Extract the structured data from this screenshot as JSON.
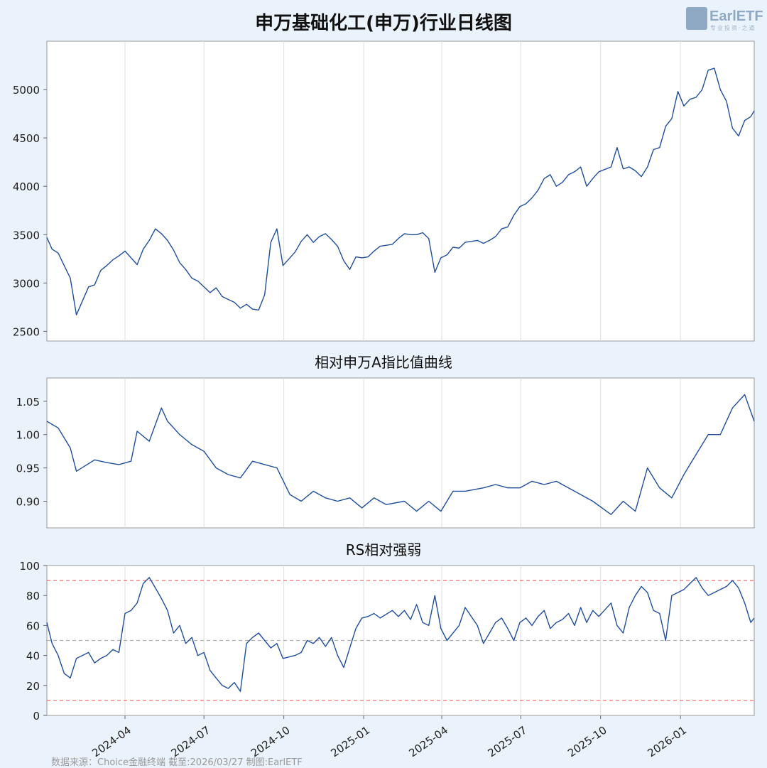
{
  "main_title": "申万基础化工(申万)行业日线图",
  "logo": {
    "text": "EarlETF",
    "subtext": "专业投资·之道"
  },
  "footer": "数据来源：Choice金融终端 截至:2026/03/27 制图:EarlETF",
  "colors": {
    "line": "#1f4e9e",
    "background": "#eaf3fb",
    "panel": "#ffffff",
    "ref_red": "#f07070",
    "ref_gray": "#b0b0b0",
    "grid": "#dddddd"
  },
  "x_axis": {
    "tick_labels": [
      "2024-04",
      "2024-07",
      "2024-10",
      "2025-01",
      "2025-04",
      "2025-07",
      "2025-10",
      "2026-01"
    ]
  },
  "chart_data": [
    {
      "type": "line",
      "title": "申万基础化工(申万)行业日线图",
      "series": [
        {
          "name": "",
          "x": [
            "2024-01-02",
            "2024-01-08",
            "2024-01-15",
            "2024-01-22",
            "2024-01-29",
            "2024-02-05",
            "2024-02-19",
            "2024-02-26",
            "2024-03-04",
            "2024-03-11",
            "2024-03-18",
            "2024-03-25",
            "2024-04-01",
            "2024-04-08",
            "2024-04-15",
            "2024-04-22",
            "2024-04-29",
            "2024-05-06",
            "2024-05-13",
            "2024-05-20",
            "2024-05-27",
            "2024-06-03",
            "2024-06-10",
            "2024-06-17",
            "2024-06-24",
            "2024-07-01",
            "2024-07-08",
            "2024-07-15",
            "2024-07-22",
            "2024-07-29",
            "2024-08-05",
            "2024-08-12",
            "2024-08-19",
            "2024-08-26",
            "2024-09-02",
            "2024-09-09",
            "2024-09-16",
            "2024-09-23",
            "2024-09-30",
            "2024-10-14",
            "2024-10-21",
            "2024-10-28",
            "2024-11-04",
            "2024-11-11",
            "2024-11-18",
            "2024-11-25",
            "2024-12-02",
            "2024-12-09",
            "2024-12-16",
            "2024-12-23",
            "2024-12-30",
            "2025-01-06",
            "2025-01-13",
            "2025-01-20",
            "2025-02-03",
            "2025-02-10",
            "2025-02-17",
            "2025-02-24",
            "2025-03-03",
            "2025-03-10",
            "2025-03-17",
            "2025-03-24",
            "2025-03-31",
            "2025-04-07",
            "2025-04-14",
            "2025-04-21",
            "2025-04-28",
            "2025-05-12",
            "2025-05-19",
            "2025-05-26",
            "2025-06-02",
            "2025-06-09",
            "2025-06-16",
            "2025-06-23",
            "2025-06-30",
            "2025-07-07",
            "2025-07-14",
            "2025-07-21",
            "2025-07-28",
            "2025-08-04",
            "2025-08-11",
            "2025-08-18",
            "2025-08-25",
            "2025-09-01",
            "2025-09-08",
            "2025-09-15",
            "2025-09-22",
            "2025-09-29",
            "2025-10-13",
            "2025-10-20",
            "2025-10-27",
            "2025-11-03",
            "2025-11-10",
            "2025-11-17",
            "2025-11-24",
            "2025-12-01",
            "2025-12-08",
            "2025-12-15",
            "2025-12-22",
            "2025-12-29",
            "2026-01-05",
            "2026-01-12",
            "2026-01-19",
            "2026-01-26",
            "2026-02-02",
            "2026-02-09",
            "2026-02-16",
            "2026-02-23",
            "2026-03-02",
            "2026-03-09",
            "2026-03-16",
            "2026-03-23",
            "2026-03-27"
          ],
          "values": [
            3470,
            3350,
            3310,
            3180,
            3050,
            2670,
            2960,
            2980,
            3130,
            3180,
            3240,
            3280,
            3330,
            3260,
            3190,
            3350,
            3440,
            3560,
            3510,
            3440,
            3340,
            3210,
            3140,
            3050,
            3020,
            2960,
            2900,
            2950,
            2860,
            2830,
            2800,
            2740,
            2780,
            2730,
            2720,
            2880,
            3420,
            3560,
            3180,
            3320,
            3430,
            3500,
            3420,
            3480,
            3510,
            3450,
            3380,
            3230,
            3140,
            3270,
            3260,
            3270,
            3330,
            3380,
            3400,
            3460,
            3510,
            3500,
            3500,
            3520,
            3460,
            3110,
            3260,
            3290,
            3370,
            3360,
            3420,
            3440,
            3410,
            3440,
            3480,
            3560,
            3580,
            3700,
            3790,
            3820,
            3880,
            3960,
            4080,
            4120,
            4000,
            4040,
            4120,
            4150,
            4200,
            4000,
            4080,
            4150,
            4200,
            4400,
            4180,
            4200,
            4160,
            4100,
            4200,
            4380,
            4400,
            4620,
            4700,
            4980,
            4830,
            4900,
            4920,
            5000,
            5200,
            5220,
            5000,
            4880,
            4600,
            4520,
            4680,
            4720,
            4780
          ]
        }
      ],
      "ylim": [
        2400,
        5500
      ],
      "yticks": [
        2500,
        3000,
        3500,
        4000,
        4500,
        5000
      ]
    },
    {
      "type": "line",
      "title": "相对申万A指比值曲线",
      "series": [
        {
          "name": "",
          "x": [
            "2024-01-02",
            "2024-01-15",
            "2024-01-29",
            "2024-02-05",
            "2024-02-26",
            "2024-03-11",
            "2024-03-25",
            "2024-04-08",
            "2024-04-15",
            "2024-04-29",
            "2024-05-13",
            "2024-05-20",
            "2024-06-03",
            "2024-06-17",
            "2024-07-01",
            "2024-07-15",
            "2024-07-29",
            "2024-08-12",
            "2024-08-26",
            "2024-09-09",
            "2024-09-23",
            "2024-10-08",
            "2024-10-21",
            "2024-11-04",
            "2024-11-18",
            "2024-12-02",
            "2024-12-16",
            "2024-12-30",
            "2025-01-13",
            "2025-01-27",
            "2025-02-17",
            "2025-03-03",
            "2025-03-17",
            "2025-03-31",
            "2025-04-14",
            "2025-04-28",
            "2025-05-19",
            "2025-06-02",
            "2025-06-16",
            "2025-06-30",
            "2025-07-14",
            "2025-07-28",
            "2025-08-11",
            "2025-08-25",
            "2025-09-08",
            "2025-09-22",
            "2025-10-13",
            "2025-10-27",
            "2025-11-10",
            "2025-11-24",
            "2025-12-08",
            "2025-12-22",
            "2026-01-05",
            "2026-01-19",
            "2026-02-02",
            "2026-02-16",
            "2026-03-02",
            "2026-03-16",
            "2026-03-27"
          ],
          "values": [
            1.02,
            1.01,
            0.98,
            0.945,
            0.962,
            0.958,
            0.955,
            0.96,
            1.005,
            0.99,
            1.04,
            1.02,
            1.0,
            0.985,
            0.975,
            0.95,
            0.94,
            0.935,
            0.96,
            0.955,
            0.95,
            0.91,
            0.9,
            0.915,
            0.905,
            0.9,
            0.905,
            0.89,
            0.905,
            0.895,
            0.9,
            0.885,
            0.9,
            0.885,
            0.915,
            0.915,
            0.92,
            0.925,
            0.92,
            0.92,
            0.93,
            0.925,
            0.93,
            0.92,
            0.91,
            0.9,
            0.88,
            0.9,
            0.885,
            0.95,
            0.92,
            0.905,
            0.94,
            0.97,
            1.0,
            1.0,
            1.04,
            1.06,
            1.02
          ]
        }
      ],
      "ylim": [
        0.86,
        1.085
      ],
      "yticks": [
        0.9,
        0.95,
        1.0,
        1.05
      ],
      "ytick_labels": [
        "0.90",
        "0.95",
        "1.00",
        "1.05"
      ]
    },
    {
      "type": "line",
      "title": "RS相对强弱",
      "series": [
        {
          "name": "",
          "x": [
            "2024-01-02",
            "2024-01-08",
            "2024-01-15",
            "2024-01-22",
            "2024-01-29",
            "2024-02-05",
            "2024-02-19",
            "2024-02-26",
            "2024-03-04",
            "2024-03-11",
            "2024-03-18",
            "2024-03-25",
            "2024-04-01",
            "2024-04-08",
            "2024-04-15",
            "2024-04-22",
            "2024-04-29",
            "2024-05-06",
            "2024-05-13",
            "2024-05-20",
            "2024-05-27",
            "2024-06-03",
            "2024-06-10",
            "2024-06-17",
            "2024-06-24",
            "2024-07-01",
            "2024-07-08",
            "2024-07-15",
            "2024-07-22",
            "2024-07-29",
            "2024-08-05",
            "2024-08-12",
            "2024-08-19",
            "2024-08-26",
            "2024-09-02",
            "2024-09-09",
            "2024-09-16",
            "2024-09-23",
            "2024-09-30",
            "2024-10-14",
            "2024-10-21",
            "2024-10-28",
            "2024-11-04",
            "2024-11-11",
            "2024-11-18",
            "2024-11-25",
            "2024-12-02",
            "2024-12-09",
            "2024-12-16",
            "2024-12-23",
            "2024-12-30",
            "2025-01-06",
            "2025-01-13",
            "2025-01-20",
            "2025-02-03",
            "2025-02-10",
            "2025-02-17",
            "2025-02-24",
            "2025-03-03",
            "2025-03-10",
            "2025-03-17",
            "2025-03-24",
            "2025-03-31",
            "2025-04-07",
            "2025-04-14",
            "2025-04-21",
            "2025-04-28",
            "2025-05-12",
            "2025-05-19",
            "2025-05-26",
            "2025-06-02",
            "2025-06-09",
            "2025-06-16",
            "2025-06-23",
            "2025-06-30",
            "2025-07-07",
            "2025-07-14",
            "2025-07-21",
            "2025-07-28",
            "2025-08-04",
            "2025-08-11",
            "2025-08-18",
            "2025-08-25",
            "2025-09-01",
            "2025-09-08",
            "2025-09-15",
            "2025-09-22",
            "2025-09-29",
            "2025-10-13",
            "2025-10-20",
            "2025-10-27",
            "2025-11-03",
            "2025-11-10",
            "2025-11-17",
            "2025-11-24",
            "2025-12-01",
            "2025-12-08",
            "2025-12-15",
            "2025-12-22",
            "2025-12-29",
            "2026-01-05",
            "2026-01-12",
            "2026-01-19",
            "2026-01-26",
            "2026-02-02",
            "2026-02-09",
            "2026-02-16",
            "2026-02-23",
            "2026-03-02",
            "2026-03-09",
            "2026-03-16",
            "2026-03-23",
            "2026-03-27"
          ],
          "values": [
            62,
            48,
            40,
            28,
            25,
            38,
            42,
            35,
            38,
            40,
            44,
            42,
            68,
            70,
            75,
            88,
            92,
            85,
            78,
            70,
            55,
            60,
            48,
            52,
            40,
            42,
            30,
            25,
            20,
            18,
            22,
            16,
            48,
            52,
            55,
            50,
            45,
            48,
            38,
            40,
            42,
            50,
            48,
            52,
            46,
            52,
            40,
            32,
            45,
            58,
            65,
            66,
            68,
            65,
            70,
            66,
            70,
            64,
            74,
            62,
            60,
            80,
            58,
            50,
            55,
            60,
            72,
            60,
            48,
            55,
            62,
            65,
            58,
            50,
            62,
            65,
            60,
            66,
            70,
            58,
            62,
            64,
            68,
            60,
            72,
            62,
            70,
            66,
            75,
            60,
            55,
            72,
            80,
            86,
            82,
            70,
            68,
            50,
            80,
            82,
            84,
            88,
            92,
            85,
            80,
            82,
            84,
            86,
            90,
            85,
            75,
            62,
            65
          ]
        }
      ],
      "ylim": [
        0,
        100
      ],
      "yticks": [
        0,
        20,
        40,
        60,
        80,
        100
      ],
      "reference_lines": [
        10,
        50,
        90
      ]
    }
  ]
}
